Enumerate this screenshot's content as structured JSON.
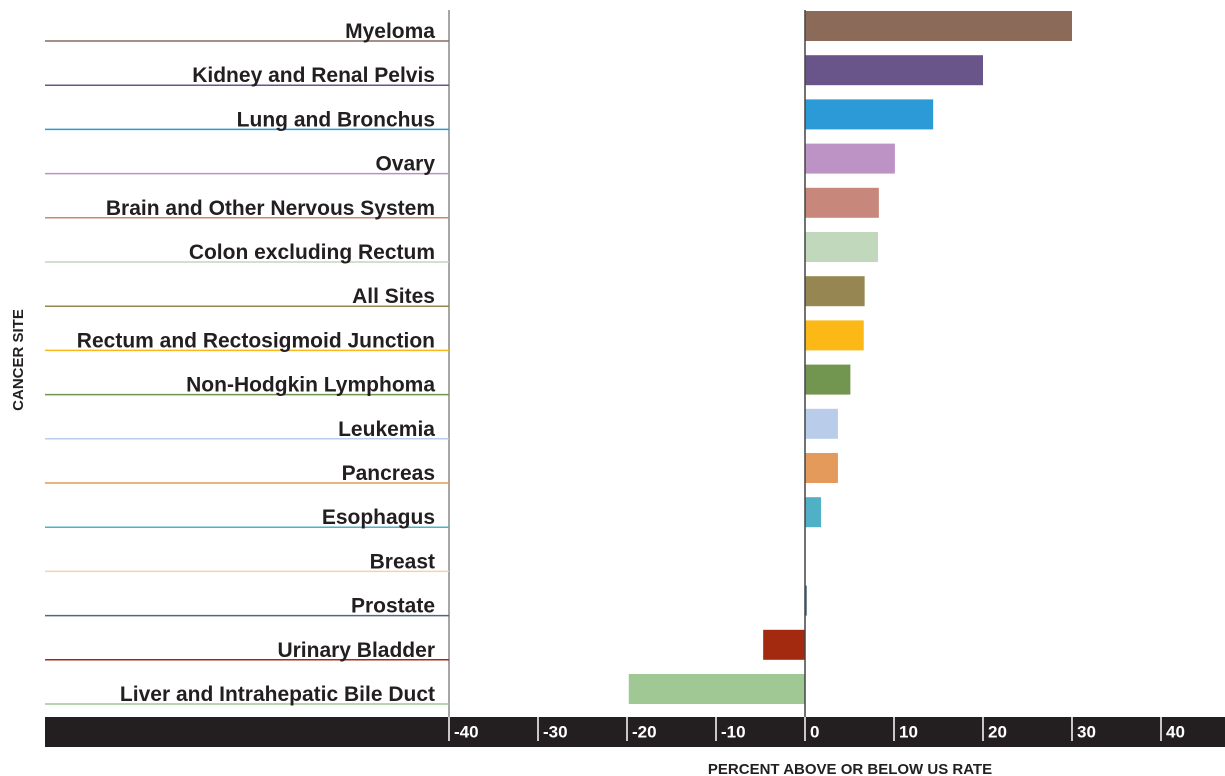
{
  "chart_data": {
    "type": "bar",
    "orientation": "horizontal",
    "x_label": "PERCENT ABOVE OR BELOW US RATE",
    "y_label": "CANCER SITE",
    "categories": [
      "Myeloma",
      "Kidney and Renal Pelvis",
      "Lung and Bronchus",
      "Ovary",
      "Brain and Other Nervous System",
      "Colon excluding Rectum",
      "All Sites",
      "Rectum and Rectosigmoid Junction",
      "Non-Hodgkin Lymphoma",
      "Leukemia",
      "Pancreas",
      "Esophagus",
      "Breast",
      "Prostate",
      "Urinary Bladder",
      "Liver and Intrahepatic Bile Duct"
    ],
    "values": [
      30,
      20,
      14.4,
      10.1,
      8.3,
      8.2,
      6.7,
      6.6,
      5.1,
      3.7,
      3.7,
      1.8,
      0,
      0.2,
      -4.7,
      -19.8
    ],
    "colors": [
      "#8b6a5a",
      "#6a558a",
      "#2b9ad6",
      "#bd93c6",
      "#c8877b",
      "#c1d8bd",
      "#958652",
      "#fbb817",
      "#72964f",
      "#b9cdeb",
      "#e49a5a",
      "#4fb0c6",
      "#f3d5a8",
      "#4a6a80",
      "#a3290f",
      "#9fc895"
    ],
    "xlim": [
      -40,
      40
    ],
    "xticks": [
      -40,
      -30,
      -20,
      -10,
      0,
      10,
      20,
      30,
      40
    ]
  }
}
